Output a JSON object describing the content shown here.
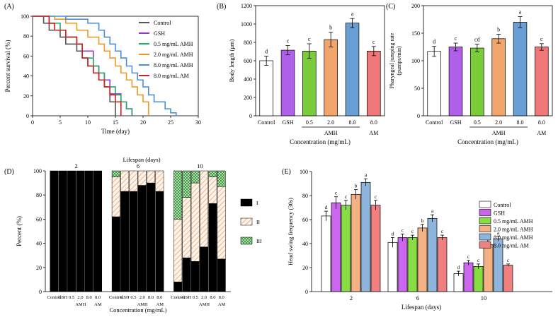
{
  "chart_data": [
    {
      "panel": "(A)",
      "type": "line",
      "subtype": "step",
      "xlabel": "Time (day)",
      "ylabel": "Percent survival (%)",
      "xlim": [
        0,
        30
      ],
      "ylim": [
        0,
        100
      ],
      "xticks": [
        0,
        5,
        10,
        15,
        20,
        25,
        30
      ],
      "yticks": [
        0,
        20,
        40,
        60,
        80,
        100
      ],
      "legend_position": "right",
      "series": [
        {
          "name": "Control",
          "color": "#555555",
          "points": [
            [
              0,
              100
            ],
            [
              2,
              93
            ],
            [
              3,
              86
            ],
            [
              5,
              79
            ],
            [
              6,
              72
            ],
            [
              8,
              65
            ],
            [
              9,
              58
            ],
            [
              10,
              50
            ],
            [
              11,
              43
            ],
            [
              12,
              36
            ],
            [
              13,
              29
            ],
            [
              14,
              14
            ],
            [
              15,
              0
            ]
          ]
        },
        {
          "name": "GSH",
          "color": "#9933cc",
          "points": [
            [
              0,
              100
            ],
            [
              3,
              93
            ],
            [
              4,
              86
            ],
            [
              6,
              79
            ],
            [
              8,
              72
            ],
            [
              9,
              65
            ],
            [
              11,
              50
            ],
            [
              12,
              43
            ],
            [
              13,
              36
            ],
            [
              14,
              22
            ],
            [
              16,
              14
            ],
            [
              17,
              7
            ],
            [
              18,
              0
            ]
          ]
        },
        {
          "name": "0.5 mg/mL AMH",
          "color": "#22aa66",
          "points": [
            [
              0,
              100
            ],
            [
              3,
              93
            ],
            [
              5,
              86
            ],
            [
              6,
              79
            ],
            [
              8,
              72
            ],
            [
              9,
              58
            ],
            [
              11,
              50
            ],
            [
              12,
              43
            ],
            [
              13,
              29
            ],
            [
              15,
              21
            ],
            [
              16,
              14
            ],
            [
              17,
              7
            ],
            [
              18,
              0
            ]
          ]
        },
        {
          "name": "2.0 mg/mL AMH",
          "color": "#ee9922",
          "points": [
            [
              0,
              100
            ],
            [
              4,
              97
            ],
            [
              6,
              93
            ],
            [
              8,
              86
            ],
            [
              10,
              79
            ],
            [
              12,
              72
            ],
            [
              13,
              65
            ],
            [
              14,
              58
            ],
            [
              15,
              50
            ],
            [
              16,
              43
            ],
            [
              17,
              36
            ],
            [
              18,
              29
            ],
            [
              19,
              21
            ],
            [
              20,
              14
            ],
            [
              21,
              0
            ]
          ]
        },
        {
          "name": "8.0 mg/mL AMH",
          "color": "#4a90d9",
          "points": [
            [
              0,
              100
            ],
            [
              6,
              97
            ],
            [
              10,
              93
            ],
            [
              12,
              86
            ],
            [
              13,
              79
            ],
            [
              14,
              72
            ],
            [
              15,
              65
            ],
            [
              16,
              58
            ],
            [
              17,
              50
            ],
            [
              18,
              43
            ],
            [
              19,
              36
            ],
            [
              20,
              29
            ],
            [
              21,
              21
            ],
            [
              22,
              14
            ],
            [
              24,
              7
            ],
            [
              25,
              3
            ],
            [
              26,
              0
            ]
          ]
        },
        {
          "name": "8.0 mg/mL AM",
          "color": "#cc2222",
          "points": [
            [
              0,
              100
            ],
            [
              3,
              93
            ],
            [
              4,
              86
            ],
            [
              6,
              79
            ],
            [
              8,
              72
            ],
            [
              9,
              58
            ],
            [
              10,
              50
            ],
            [
              11,
              43
            ],
            [
              12,
              36
            ],
            [
              13,
              29
            ],
            [
              14,
              21
            ],
            [
              15,
              14
            ],
            [
              16,
              0
            ]
          ]
        }
      ]
    },
    {
      "panel": "(B)",
      "type": "bar",
      "ylabel": "Body length (μm)",
      "xlabel": "Concentration (mg/mL)",
      "ylim": [
        0,
        1200
      ],
      "yticks": [
        0,
        200,
        400,
        600,
        800,
        1000,
        1200
      ],
      "categories": [
        "Control",
        "GSH",
        "0.5",
        "2.0",
        "8.0",
        "8.0"
      ],
      "group_labels": [
        "AMH",
        "AM"
      ],
      "values": [
        600,
        715,
        705,
        830,
        1010,
        705
      ],
      "errors": [
        50,
        50,
        80,
        80,
        50,
        50
      ],
      "letters": [
        "d",
        "c",
        "c",
        "b",
        "a",
        "c"
      ]
    },
    {
      "panel": "(C)",
      "type": "bar",
      "ylabel": "Pharyngeal jumping rate",
      "ylabel2": "(pumps/min)",
      "xlabel": "Concentration (mg/mL)",
      "ylim": [
        0,
        200
      ],
      "yticks": [
        0,
        50,
        100,
        150,
        200
      ],
      "categories": [
        "Control",
        "GSH",
        "0.5",
        "2.0",
        "8.0",
        "8.0"
      ],
      "group_labels": [
        "AMH",
        "AM"
      ],
      "values": [
        117,
        125,
        123,
        140,
        170,
        125
      ],
      "errors": [
        9,
        7,
        7,
        8,
        10,
        6
      ],
      "letters": [
        "d",
        "c",
        "cd",
        "b",
        "a",
        "c"
      ]
    },
    {
      "panel": "(D)",
      "type": "bar",
      "subtype": "stacked-percent",
      "title": "Lifespan (days)",
      "ylabel": "Percent (%)",
      "xlabel": "Concentration (mg/mL)",
      "ylim": [
        0,
        100
      ],
      "yticks": [
        0,
        20,
        40,
        60,
        80,
        100
      ],
      "groups": [
        "2",
        "6",
        "10"
      ],
      "categories": [
        "Control",
        "GSH",
        "0.5",
        "2.0",
        "8.0",
        "8.0"
      ],
      "group_labels": [
        "AMH",
        "AM"
      ],
      "legend": [
        "I",
        "II",
        "III"
      ],
      "series": [
        {
          "name": "I",
          "values": [
            [
              100,
              100,
              100,
              100,
              100,
              100
            ],
            [
              62,
              83,
              83,
              88,
              90,
              83
            ],
            [
              8,
              28,
              25,
              37,
              73,
              27
            ]
          ]
        },
        {
          "name": "II",
          "values": [
            [
              0,
              0,
              0,
              0,
              0,
              0
            ],
            [
              33,
              17,
              17,
              12,
              10,
              17
            ],
            [
              52,
              50,
              65,
              63,
              22,
              60
            ]
          ]
        },
        {
          "name": "III",
          "values": [
            [
              0,
              0,
              0,
              0,
              0,
              0
            ],
            [
              5,
              0,
              0,
              0,
              0,
              0
            ],
            [
              40,
              22,
              10,
              0,
              5,
              13
            ]
          ]
        }
      ]
    },
    {
      "panel": "(E)",
      "type": "bar",
      "ylabel": "Head swing frequency (30s)",
      "xlabel": "Lifespan (days)",
      "ylim": [
        0,
        100
      ],
      "yticks": [
        0,
        20,
        40,
        60,
        80,
        100
      ],
      "categories": [
        "2",
        "6",
        "10"
      ],
      "legend_position": "top-right",
      "series": [
        {
          "name": "Control",
          "color": "#ffffff",
          "values": [
            63,
            41,
            15
          ],
          "errors": [
            4,
            4,
            2
          ],
          "letters": [
            "d",
            "d",
            "d"
          ]
        },
        {
          "name": "GSH",
          "color": "#cc66ee",
          "values": [
            74,
            45,
            24
          ],
          "errors": [
            5,
            3,
            2
          ],
          "letters": [
            "c",
            "c",
            "c"
          ]
        },
        {
          "name": "0.5 mg/mL AMH",
          "color": "#88dd44",
          "values": [
            72,
            45,
            21
          ],
          "errors": [
            4,
            2,
            2
          ],
          "letters": [
            "c",
            "c",
            "c"
          ]
        },
        {
          "name": "2.0 mg/mL AMH",
          "color": "#f4b183",
          "values": [
            81,
            53,
            39
          ],
          "errors": [
            4,
            3,
            1
          ],
          "letters": [
            "b",
            "b",
            "b"
          ]
        },
        {
          "name": "8.0 mg/mL AMH",
          "color": "#8fb5dc",
          "values": [
            91,
            61,
            44
          ],
          "errors": [
            3,
            3,
            2
          ],
          "letters": [
            "a",
            "a",
            "a"
          ]
        },
        {
          "name": "8.0 mg/mL AM",
          "color": "#f08080",
          "values": [
            72,
            45,
            22
          ],
          "errors": [
            4,
            2,
            1
          ],
          "letters": [
            "c",
            "c",
            "c"
          ]
        }
      ]
    }
  ]
}
